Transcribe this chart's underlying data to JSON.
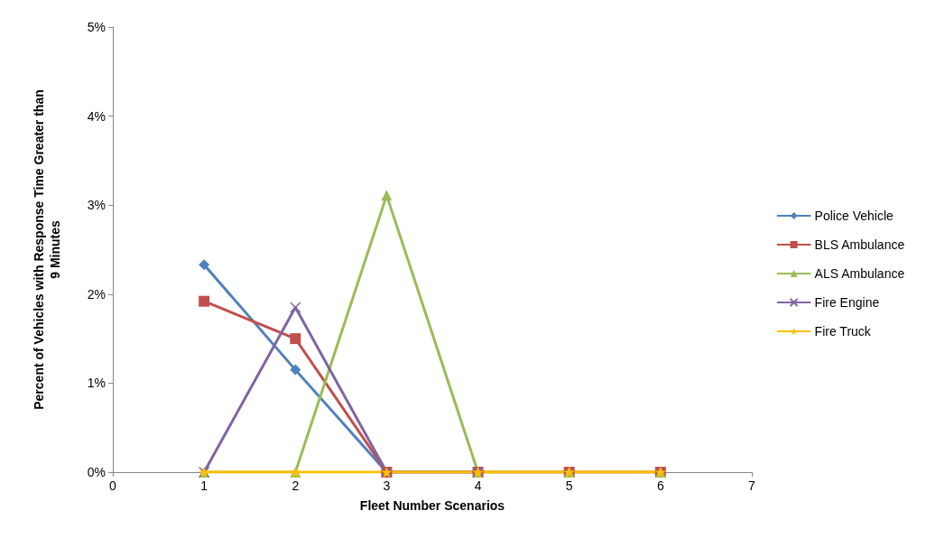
{
  "chart_data": {
    "type": "line",
    "xlabel": "Fleet Number Scenarios",
    "ylabel": "Percent of Vehicles with Response Time Greater than 9 Minutes",
    "x": [
      1,
      2,
      3,
      4,
      5,
      6
    ],
    "series": [
      {
        "name": "Police Vehicle",
        "color": "#4f81bd",
        "marker": "diamond",
        "values": [
          2.33,
          1.15,
          0,
          0,
          null,
          null
        ]
      },
      {
        "name": "BLS Ambulance",
        "color": "#c0504d",
        "marker": "square",
        "values": [
          1.92,
          1.5,
          0,
          0,
          0,
          0
        ]
      },
      {
        "name": "ALS Ambulance",
        "color": "#9bbb59",
        "marker": "triangle",
        "values": [
          0,
          0,
          3.11,
          0,
          0,
          0
        ]
      },
      {
        "name": "Fire Engine",
        "color": "#8064a2",
        "marker": "cross",
        "values": [
          0,
          1.85,
          0,
          0,
          null,
          null
        ]
      },
      {
        "name": "Fire Truck",
        "color": "#ffc000",
        "marker": "star",
        "values": [
          0,
          0,
          0,
          0,
          0,
          0
        ]
      }
    ],
    "xlim": [
      0,
      7
    ],
    "xticks": [
      0,
      1,
      2,
      3,
      4,
      5,
      6,
      7
    ],
    "ylim": [
      0,
      5
    ],
    "yticks": [
      {
        "value": 0,
        "label": "0%"
      },
      {
        "value": 1,
        "label": "1%"
      },
      {
        "value": 2,
        "label": "2%"
      },
      {
        "value": 3,
        "label": "3%"
      },
      {
        "value": 4,
        "label": "4%"
      },
      {
        "value": 5,
        "label": "5%"
      }
    ],
    "grid": false,
    "legend": "right",
    "line_style": "solid"
  }
}
